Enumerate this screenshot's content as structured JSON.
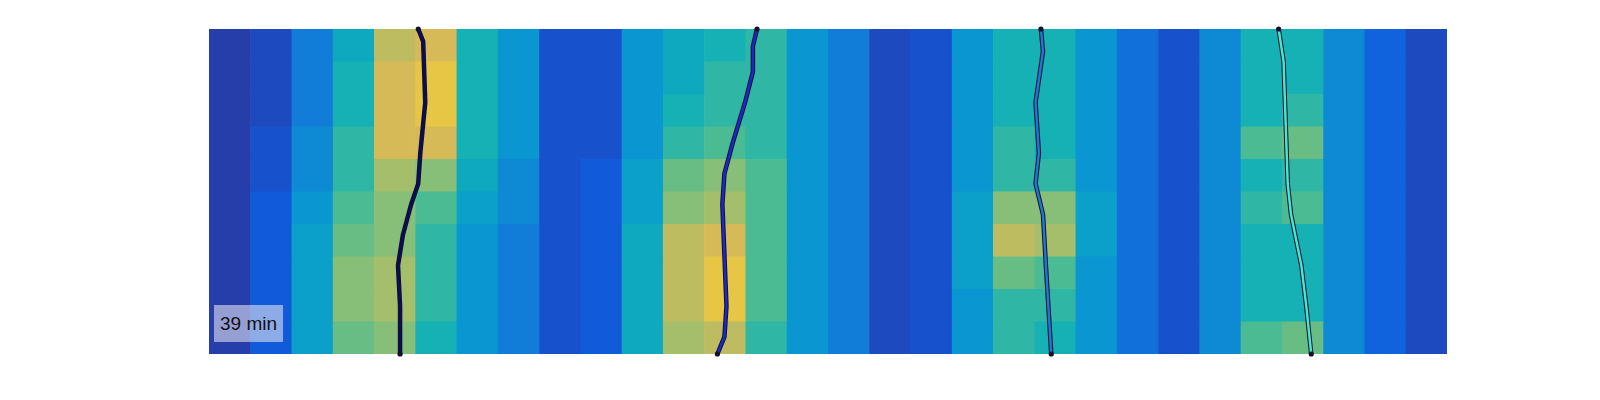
{
  "chart_data": {
    "type": "heatmap",
    "tick_labels": false,
    "xlim": [
      0,
      30
    ],
    "ylim": [
      0,
      10
    ],
    "zlim": [
      0,
      1
    ],
    "annotation": "39 min",
    "cells": [
      [
        0.05,
        0.08,
        0.25,
        0.45,
        0.8,
        0.85,
        0.5,
        0.35,
        0.1,
        0.1,
        0.35,
        0.45,
        0.5,
        0.55,
        0.35,
        0.25,
        0.08,
        0.1,
        0.35,
        0.5,
        0.5,
        0.35,
        0.2,
        0.1,
        0.3,
        0.5,
        0.5,
        0.3,
        0.15,
        0.08
      ],
      [
        0.05,
        0.08,
        0.25,
        0.5,
        0.85,
        0.9,
        0.5,
        0.35,
        0.1,
        0.1,
        0.35,
        0.45,
        0.55,
        0.55,
        0.35,
        0.25,
        0.08,
        0.1,
        0.35,
        0.5,
        0.5,
        0.35,
        0.2,
        0.1,
        0.3,
        0.5,
        0.5,
        0.3,
        0.15,
        0.08
      ],
      [
        0.05,
        0.08,
        0.25,
        0.5,
        0.85,
        0.9,
        0.5,
        0.35,
        0.1,
        0.1,
        0.35,
        0.5,
        0.55,
        0.55,
        0.35,
        0.25,
        0.08,
        0.1,
        0.35,
        0.5,
        0.5,
        0.35,
        0.2,
        0.1,
        0.3,
        0.5,
        0.55,
        0.3,
        0.15,
        0.08
      ],
      [
        0.05,
        0.1,
        0.3,
        0.55,
        0.85,
        0.85,
        0.5,
        0.35,
        0.1,
        0.1,
        0.35,
        0.55,
        0.6,
        0.55,
        0.35,
        0.25,
        0.08,
        0.1,
        0.35,
        0.55,
        0.5,
        0.35,
        0.2,
        0.1,
        0.3,
        0.6,
        0.65,
        0.3,
        0.15,
        0.08
      ],
      [
        0.05,
        0.1,
        0.3,
        0.55,
        0.75,
        0.7,
        0.45,
        0.3,
        0.1,
        0.12,
        0.4,
        0.65,
        0.7,
        0.6,
        0.35,
        0.25,
        0.08,
        0.1,
        0.35,
        0.55,
        0.55,
        0.35,
        0.2,
        0.1,
        0.3,
        0.5,
        0.55,
        0.3,
        0.15,
        0.08
      ],
      [
        0.05,
        0.12,
        0.35,
        0.6,
        0.7,
        0.6,
        0.4,
        0.3,
        0.1,
        0.12,
        0.4,
        0.7,
        0.75,
        0.6,
        0.35,
        0.25,
        0.08,
        0.1,
        0.4,
        0.7,
        0.7,
        0.4,
        0.2,
        0.1,
        0.3,
        0.55,
        0.6,
        0.3,
        0.15,
        0.08
      ],
      [
        0.05,
        0.12,
        0.4,
        0.65,
        0.7,
        0.55,
        0.35,
        0.25,
        0.1,
        0.12,
        0.45,
        0.8,
        0.85,
        0.6,
        0.35,
        0.25,
        0.08,
        0.1,
        0.4,
        0.8,
        0.75,
        0.4,
        0.2,
        0.1,
        0.3,
        0.5,
        0.5,
        0.3,
        0.15,
        0.08
      ],
      [
        0.05,
        0.12,
        0.4,
        0.7,
        0.75,
        0.55,
        0.35,
        0.25,
        0.1,
        0.12,
        0.45,
        0.8,
        0.9,
        0.6,
        0.35,
        0.25,
        0.08,
        0.1,
        0.4,
        0.65,
        0.6,
        0.35,
        0.2,
        0.1,
        0.3,
        0.5,
        0.5,
        0.3,
        0.15,
        0.08
      ],
      [
        0.05,
        0.12,
        0.4,
        0.7,
        0.75,
        0.55,
        0.35,
        0.25,
        0.1,
        0.12,
        0.45,
        0.8,
        0.9,
        0.6,
        0.35,
        0.25,
        0.08,
        0.1,
        0.35,
        0.55,
        0.55,
        0.35,
        0.2,
        0.1,
        0.3,
        0.5,
        0.5,
        0.3,
        0.15,
        0.08
      ],
      [
        0.05,
        0.12,
        0.4,
        0.65,
        0.7,
        0.5,
        0.35,
        0.25,
        0.1,
        0.12,
        0.45,
        0.75,
        0.8,
        0.55,
        0.35,
        0.25,
        0.08,
        0.1,
        0.35,
        0.55,
        0.5,
        0.35,
        0.2,
        0.1,
        0.3,
        0.6,
        0.65,
        0.3,
        0.15,
        0.08
      ]
    ],
    "series": [
      {
        "color": "#0c0c58",
        "x": [
          5.07,
          5.19,
          5.24,
          5.12,
          5.07,
          4.9,
          4.7,
          4.58,
          4.63,
          4.63
        ],
        "values": [
          0,
          0.38,
          2.26,
          3.82,
          4.76,
          5.39,
          6.33,
          7.27,
          8.53,
          10
        ]
      },
      {
        "color": "#1c28cc",
        "x": [
          13.28,
          13.18,
          13.18,
          12.99,
          12.69,
          12.49,
          12.44,
          12.49,
          12.54,
          12.49,
          12.32
        ],
        "values": [
          0,
          0.53,
          1.32,
          2.26,
          3.51,
          4.45,
          5.39,
          6.96,
          8.53,
          9.47,
          10
        ]
      },
      {
        "color": "#1f78d0",
        "x": [
          20.16,
          20.21,
          20.03,
          20.11,
          20.03,
          20.21,
          20.28,
          20.41
        ],
        "values": [
          0,
          0.69,
          2.26,
          3.82,
          4.76,
          5.71,
          7.27,
          10
        ]
      },
      {
        "color": "#48e6cc",
        "x": [
          25.92,
          26.04,
          26.09,
          26.14,
          26.22,
          26.47,
          26.59,
          26.71
        ],
        "values": [
          0,
          1.0,
          2.88,
          4.76,
          5.71,
          7.27,
          8.53,
          10
        ]
      }
    ]
  }
}
